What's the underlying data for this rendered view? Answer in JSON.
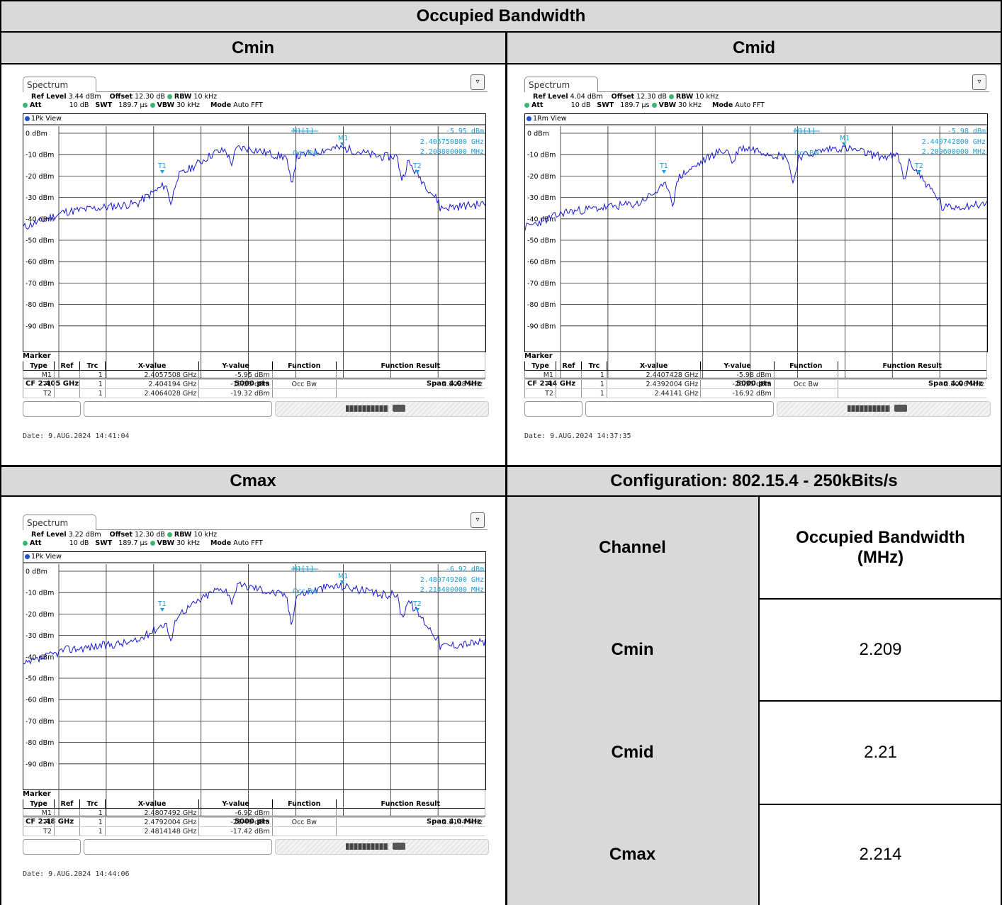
{
  "title": "Occupied Bandwidth",
  "panels": [
    {
      "heading": "Cmin",
      "spectrum": {
        "tab": "Spectrum",
        "ref_level_label": "Ref Level",
        "ref_level": "3.44 dBm",
        "att_label": "Att",
        "att": "10 dB",
        "offset_label": "Offset",
        "offset": "12.30 dB",
        "swt_label": "SWT",
        "swt": "189.7 µs",
        "rbw_label": "RBW",
        "rbw": "10 kHz",
        "vbw_label": "VBW",
        "vbw": "30 kHz",
        "mode_label": "Mode",
        "mode": "Auto FFT",
        "view": "1Pk View",
        "marker_readout": {
          "label": "M1[1]",
          "level": "-5.95 dBm",
          "freq": "2.405750800 GHz",
          "bw": "2.208800000 MHz"
        },
        "y_ticks": [
          "0 dBm",
          "-10 dBm",
          "-20 dBm",
          "-30 dBm",
          "-40 dBm",
          "-50 dBm",
          "-60 dBm",
          "-70 dBm",
          "-80 dBm",
          "-90 dBm"
        ],
        "cf": "CF 2.405 GHz",
        "pts": "5000 pts",
        "span": "Span 4.0 MHz",
        "marker_title": "Marker",
        "marker_headers": [
          "Type",
          "Ref",
          "Trc",
          "X-value",
          "Y-value",
          "Function",
          "Function Result"
        ],
        "markers": [
          [
            "M1",
            "",
            "1",
            "2.4057508 GHz",
            "-5.95 dBm",
            "",
            ""
          ],
          [
            "T1",
            "",
            "1",
            "2.404194 GHz",
            "-19.23 dBm",
            "Occ Bw",
            "2.2088 MHz"
          ],
          [
            "T2",
            "",
            "1",
            "2.4064028 GHz",
            "-19.32 dBm",
            "",
            ""
          ]
        ],
        "date": "Date: 9.AUG.2024  14:41:04",
        "trace_labels": [
          "M1",
          "T1",
          "T2",
          "Occ Bw"
        ],
        "seed": 11
      }
    },
    {
      "heading": "Cmid",
      "spectrum": {
        "tab": "Spectrum",
        "ref_level_label": "Ref Level",
        "ref_level": "4.04 dBm",
        "att_label": "Att",
        "att": "10 dB",
        "offset_label": "Offset",
        "offset": "12.30 dB",
        "swt_label": "SWT",
        "swt": "189.7 µs",
        "rbw_label": "RBW",
        "rbw": "10 kHz",
        "vbw_label": "VBW",
        "vbw": "30 kHz",
        "mode_label": "Mode",
        "mode": "Auto FFT",
        "view": "1Rm View",
        "marker_readout": {
          "label": "M1[1]",
          "level": "-5.98 dBm",
          "freq": "2.440742800 GHz",
          "bw": "2.209600000 MHz"
        },
        "y_ticks": [
          "0 dBm",
          "-10 dBm",
          "-20 dBm",
          "-30 dBm",
          "-40 dBm",
          "-50 dBm",
          "-60 dBm",
          "-70 dBm",
          "-80 dBm",
          "-90 dBm"
        ],
        "cf": "CF 2.44 GHz",
        "pts": "5000 pts",
        "span": "Span 4.0 MHz",
        "marker_title": "Marker",
        "marker_headers": [
          "Type",
          "Ref",
          "Trc",
          "X-value",
          "Y-value",
          "Function",
          "Function Result"
        ],
        "markers": [
          [
            "M1",
            "",
            "1",
            "2.4407428 GHz",
            "-5.98 dBm",
            "",
            ""
          ],
          [
            "T1",
            "",
            "1",
            "2.4392004 GHz",
            "-20.35 dBm",
            "Occ Bw",
            "2.2096 MHz"
          ],
          [
            "T2",
            "",
            "1",
            "2.44141 GHz",
            "-16.92 dBm",
            "",
            ""
          ]
        ],
        "date": "Date: 9.AUG.2024  14:37:35",
        "trace_labels": [
          "M1",
          "T1",
          "T2",
          "Occ Bw"
        ],
        "seed": 23
      }
    },
    {
      "heading": "Cmax",
      "spectrum": {
        "tab": "Spectrum",
        "ref_level_label": "Ref Level",
        "ref_level": "3.22 dBm",
        "att_label": "Att",
        "att": "10 dB",
        "offset_label": "Offset",
        "offset": "12.30 dB",
        "swt_label": "SWT",
        "swt": "189.7 µs",
        "rbw_label": "RBW",
        "rbw": "10 kHz",
        "vbw_label": "VBW",
        "vbw": "30 kHz",
        "mode_label": "Mode",
        "mode": "Auto FFT",
        "view": "1Pk View",
        "marker_readout": {
          "label": "M1[1]",
          "level": "-6.92 dBm",
          "freq": "2.480749200 GHz",
          "bw": "2.214400000 MHz"
        },
        "y_ticks": [
          "0 dBm",
          "-10 dBm",
          "-20 dBm",
          "-30 dBm",
          "-40 dBm",
          "-50 dBm",
          "-60 dBm",
          "-70 dBm",
          "-80 dBm",
          "-90 dBm"
        ],
        "cf": "CF 2.48 GHz",
        "pts": "5000 pts",
        "span": "Span 4.0 MHz",
        "marker_title": "Marker",
        "marker_headers": [
          "Type",
          "Ref",
          "Trc",
          "X-value",
          "Y-value",
          "Function",
          "Function Result"
        ],
        "markers": [
          [
            "M1",
            "",
            "1",
            "2.4807492 GHz",
            "-6.92 dBm",
            "",
            ""
          ],
          [
            "T1",
            "",
            "1",
            "2.4792004 GHz",
            "-21.49 dBm",
            "Occ Bw",
            "2.2144 MHz"
          ],
          [
            "T2",
            "",
            "1",
            "2.4814148 GHz",
            "-17.42 dBm",
            "",
            ""
          ]
        ],
        "date": "Date: 9.AUG.2024  14:44:06",
        "trace_labels": [
          "M1",
          "T1",
          "T2",
          "Occ Bw"
        ],
        "seed": 37
      }
    }
  ],
  "summary": {
    "heading": "Configuration: 802.15.4 - 250kBits/s",
    "col_channel": "Channel",
    "col_obw": "Occupied Bandwidth (MHz)",
    "rows": [
      {
        "channel": "Cmin",
        "value": "2.209"
      },
      {
        "channel": "Cmid",
        "value": "2.21"
      },
      {
        "channel": "Cmax",
        "value": "2.214"
      }
    ]
  },
  "colors": {
    "header_bg": "#d9d9d9",
    "trace": "#1a1ad0",
    "marker": "#1e9bd7"
  }
}
